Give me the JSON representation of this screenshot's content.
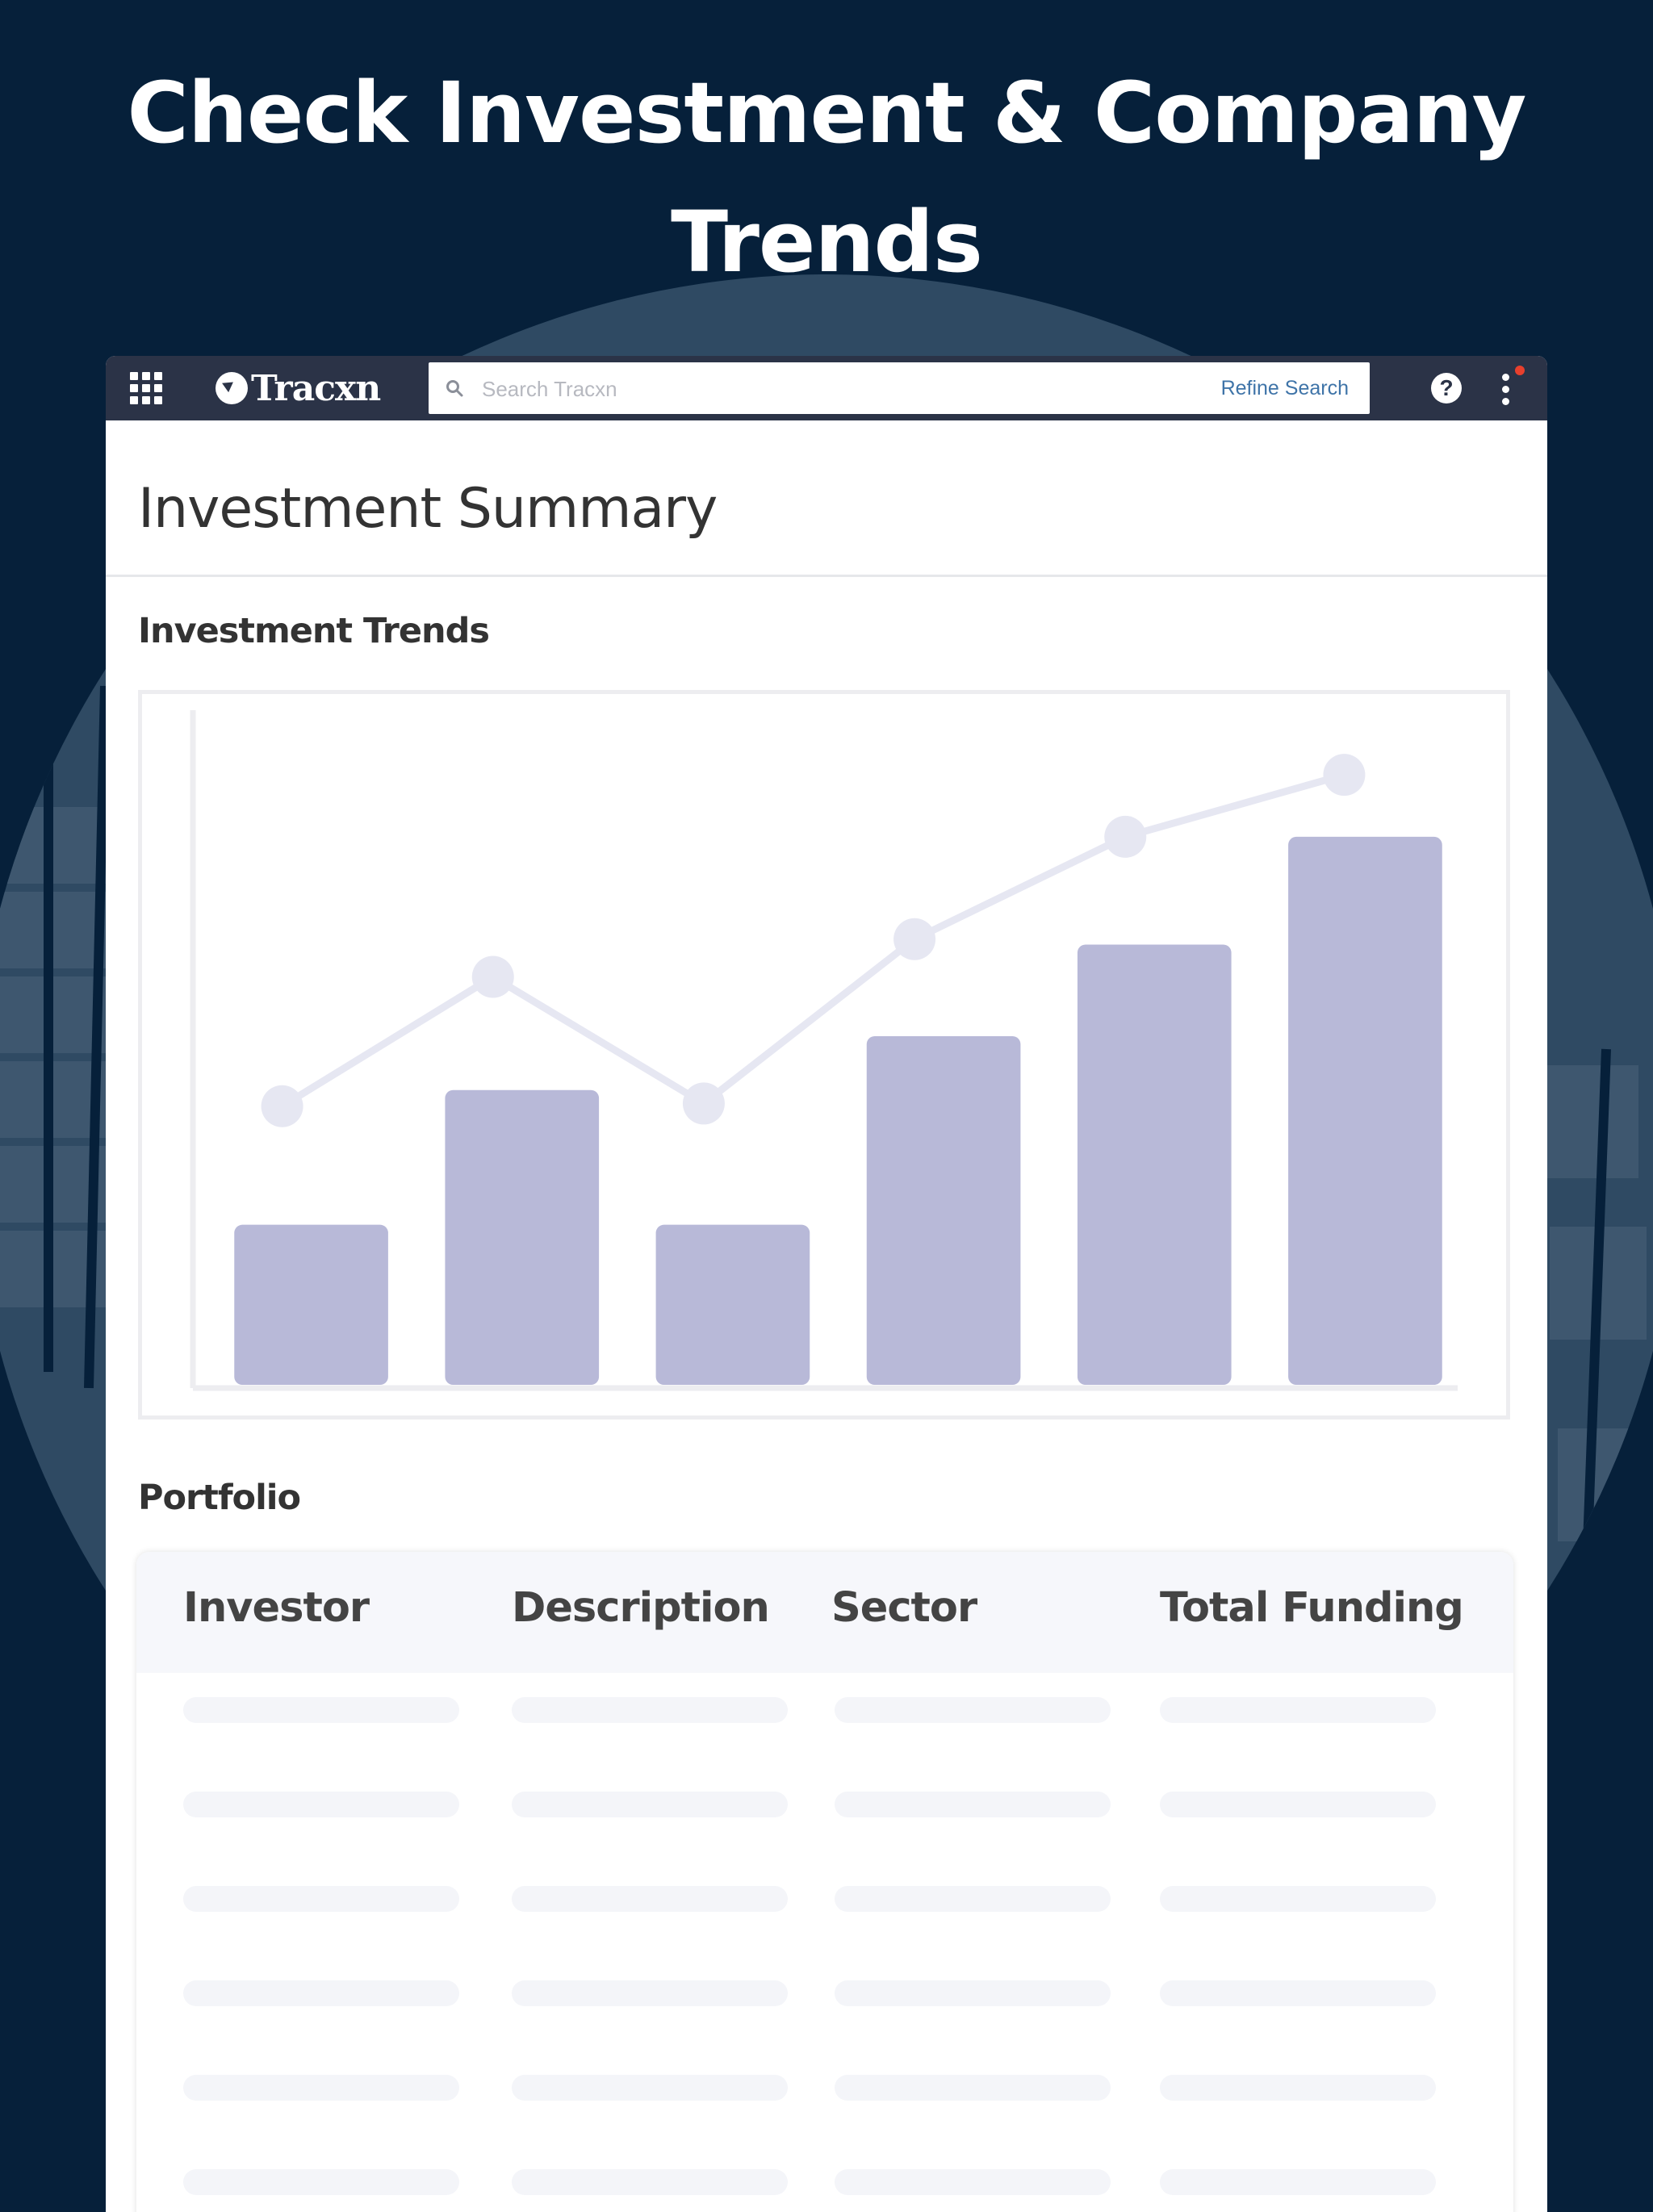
{
  "promo": {
    "headline_line1": "Check Investment & Company",
    "headline_line2": "Trends"
  },
  "topbar": {
    "logo_text": "Tracxn",
    "search_placeholder": "Search Tracxn",
    "refine_label": "Refine Search",
    "help_label": "?"
  },
  "page": {
    "title": "Investment Summary",
    "trends_title": "Investment Trends",
    "portfolio_title": "Portfolio"
  },
  "colors": {
    "background": "#06203a",
    "topbar": "#2b3347",
    "bar": "#b8b9d8",
    "line": "#e6e7f2",
    "notification": "#e8402d",
    "link": "#3f74a8"
  },
  "chart_data": {
    "type": "bar",
    "categories": [
      "",
      "",
      "",
      "",
      "",
      ""
    ],
    "values": [
      30,
      55,
      30,
      65,
      82,
      102
    ],
    "series": [
      {
        "type": "line",
        "values": [
          52,
          76,
          52.5,
          83,
          102,
          113.5
        ]
      }
    ],
    "ylim": [
      0,
      124
    ],
    "title": "",
    "xlabel": "",
    "ylabel": "",
    "grid": false
  },
  "portfolio": {
    "columns": [
      "Investor",
      "Description",
      "Sector",
      "Total Funding"
    ],
    "placeholder_rows": 6
  }
}
